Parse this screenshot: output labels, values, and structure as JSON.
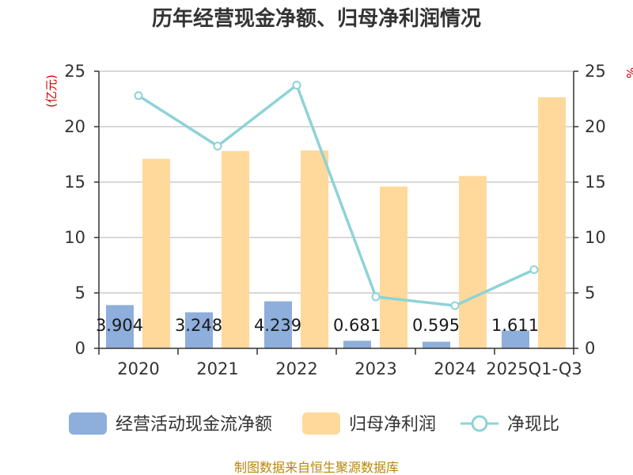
{
  "chart_data": {
    "type": "bar",
    "title": "历年经营现金净额、归母净利润情况",
    "unit_left": "(亿元)",
    "unit_right": "%",
    "categories": [
      "2020",
      "2021",
      "2022",
      "2023",
      "2024",
      "2025Q1-Q3"
    ],
    "yticks_left": [
      "0",
      "5",
      "10",
      "15",
      "20",
      "25"
    ],
    "yticks_right": [
      "0",
      "5",
      "10",
      "15",
      "20",
      "25"
    ],
    "ylim_left": [
      0,
      25
    ],
    "ylim_right": [
      0,
      25
    ],
    "grid": true,
    "legend_position": "bottom",
    "series": [
      {
        "name": "经营活动现金流净额",
        "type": "bar",
        "axis": "left",
        "color": "#8eaedb",
        "values": [
          3.904,
          3.248,
          4.239,
          0.681,
          0.595,
          1.611
        ],
        "labels": [
          "3.904",
          "3.248",
          "4.239",
          "0.681",
          "0.595",
          "1.611"
        ]
      },
      {
        "name": "归母净利润",
        "type": "bar",
        "axis": "left",
        "color": "#fed99b",
        "values": [
          17.1,
          17.8,
          17.85,
          14.6,
          15.55,
          22.65
        ]
      },
      {
        "name": "净现比",
        "type": "line",
        "axis": "right",
        "color": "#8ed3d6",
        "values": [
          22.8,
          18.25,
          23.75,
          4.65,
          3.85,
          7.1
        ]
      }
    ]
  },
  "source": "制图数据来自恒生聚源数据库"
}
